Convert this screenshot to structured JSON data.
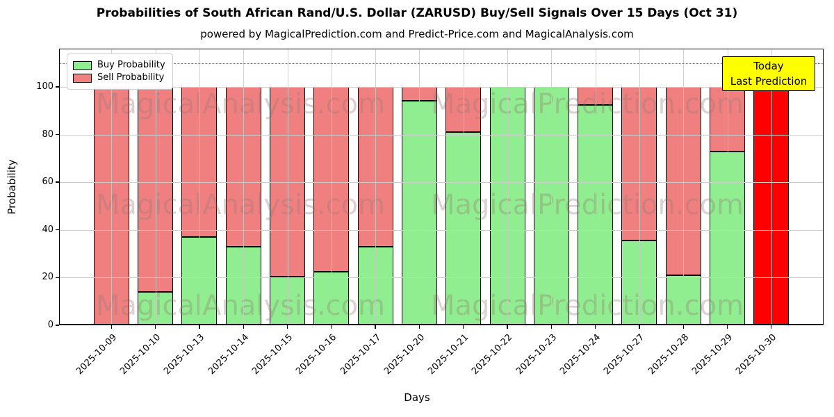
{
  "title": "Probabilities of South African Rand/U.S. Dollar (ZARUSD) Buy/Sell Signals Over 15 Days (Oct 31)",
  "subtitle": "powered by MagicalPrediction.com and Predict-Price.com and MagicalAnalysis.com",
  "legend": {
    "items": [
      {
        "label": "Buy Probability",
        "color": "#90ee90"
      },
      {
        "label": "Sell Probability",
        "color": "#f08080"
      }
    ]
  },
  "annotation_box": {
    "line1": "Today",
    "line2": "Last Prediction",
    "bg_color": "#ffff00"
  },
  "watermarks": {
    "left_text": "MagicalAnalysis.com",
    "right_text": "MagicalPrediction.com"
  },
  "chart_data": {
    "type": "bar",
    "stacked": true,
    "title": "Probabilities of South African Rand/U.S. Dollar (ZARUSD) Buy/Sell Signals Over 15 Days (Oct 31)",
    "xlabel": "Days",
    "ylabel": "Probability",
    "categories": [
      "2025-10-09",
      "2025-10-10",
      "2025-10-13",
      "2025-10-14",
      "2025-10-15",
      "2025-10-16",
      "2025-10-17",
      "2025-10-20",
      "2025-10-21",
      "2025-10-22",
      "2025-10-23",
      "2025-10-24",
      "2025-10-27",
      "2025-10-28",
      "2025-10-29",
      "2025-10-30"
    ],
    "series": [
      {
        "name": "Buy Probability",
        "color": "#90ee90",
        "values": [
          0,
          14,
          37,
          33,
          20.5,
          22.5,
          33,
          94,
          81,
          100,
          100,
          92.5,
          35.5,
          21,
          73,
          0
        ]
      },
      {
        "name": "Sell Probability",
        "color": "#f08080",
        "values": [
          100,
          86,
          63,
          67,
          79.5,
          77.5,
          67,
          6,
          19,
          0,
          0,
          7.5,
          64.5,
          79,
          27,
          100
        ]
      }
    ],
    "today_bar": {
      "category": "2025-10-30",
      "index": 15,
      "color": "#ff0000",
      "value": 100
    },
    "yticks": [
      0,
      20,
      40,
      60,
      80,
      100
    ],
    "ylim": [
      0,
      116
    ],
    "dashed_line_y": 110,
    "grid": true,
    "legend_position": "upper left",
    "bar_edge_color": "#000000"
  }
}
